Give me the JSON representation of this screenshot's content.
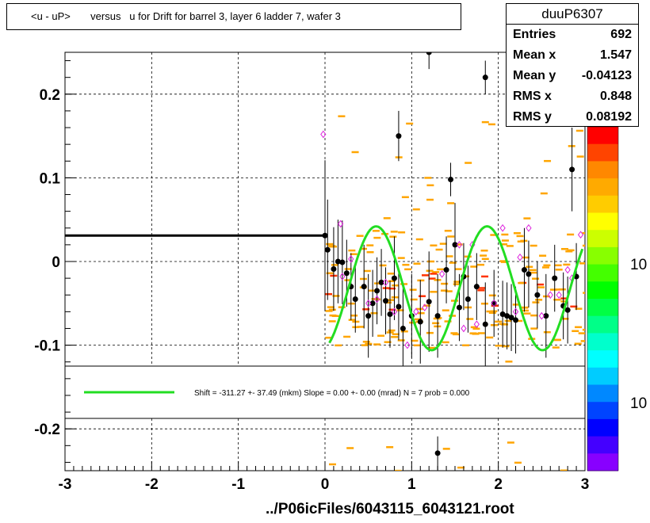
{
  "title": "<u - uP>       versus   u for Drift for barrel 3, layer 6 ladder 7, wafer 3",
  "stats": {
    "name": "duuP6307",
    "rows": [
      {
        "label": "Entries",
        "value": "692"
      },
      {
        "label": "Mean x",
        "value": "1.547"
      },
      {
        "label": "Mean y",
        "value": "-0.04123"
      },
      {
        "label": "RMS x",
        "value": "0.848"
      },
      {
        "label": "RMS y",
        "value": "0.08192"
      }
    ]
  },
  "legend_text": "Shift =  -311.27 +- 37.49 (mkm) Slope =     0.00 +- 0.00 (mrad)  N = 7 prob = 0.000",
  "footer": "../P06icFiles/6043115_6043121.root",
  "colors": {
    "fit_curve": "#22dd22",
    "profile_marker": "#000000",
    "hollow_marker": "#dd22dd",
    "histogram_bins": "#ffa500",
    "bins_dense": "#ff3300"
  },
  "palette_labels": [
    "10",
    "10"
  ],
  "chart_data": {
    "type": "scatter",
    "xlim": [
      -3,
      3
    ],
    "ylim": [
      -0.25,
      0.25
    ],
    "x_ticks": [
      "-3",
      "-2",
      "-1",
      "0",
      "1",
      "2",
      "3"
    ],
    "y_ticks": [
      "0.2",
      "0.1",
      "0",
      "-0.1",
      "-0.2"
    ],
    "y_tick_values": [
      0.2,
      0.1,
      0,
      -0.1,
      -0.2
    ],
    "grid": true,
    "palette_log": true,
    "reference_line": {
      "x": [
        -3,
        0
      ],
      "y": 0.031
    },
    "fit": {
      "amplitude": 0.074,
      "offset": -0.032,
      "period": 1.28,
      "x_start": 0.0,
      "x_end": 3.0
    },
    "profile_points": [
      {
        "x": 0.0,
        "y": 0.031,
        "e": 0.09
      },
      {
        "x": 0.03,
        "y": 0.014,
        "e": 0.06
      },
      {
        "x": 0.1,
        "y": -0.009,
        "e": 0.05
      },
      {
        "x": 0.15,
        "y": -0.0,
        "e": 0.05
      },
      {
        "x": 0.2,
        "y": -0.001,
        "e": 0.05
      },
      {
        "x": 0.25,
        "y": -0.014,
        "e": 0.04
      },
      {
        "x": 0.3,
        "y": -0.03,
        "e": 0.04
      },
      {
        "x": 0.35,
        "y": -0.045,
        "e": 0.04
      },
      {
        "x": 0.45,
        "y": -0.03,
        "e": 0.05
      },
      {
        "x": 0.5,
        "y": -0.065,
        "e": 0.05
      },
      {
        "x": 0.55,
        "y": -0.05,
        "e": 0.04
      },
      {
        "x": 0.6,
        "y": -0.035,
        "e": 0.04
      },
      {
        "x": 0.65,
        "y": -0.025,
        "e": 0.04
      },
      {
        "x": 0.7,
        "y": -0.047,
        "e": 0.04
      },
      {
        "x": 0.75,
        "y": -0.063,
        "e": 0.04
      },
      {
        "x": 0.8,
        "y": -0.02,
        "e": 0.05
      },
      {
        "x": 0.85,
        "y": -0.054,
        "e": 0.04
      },
      {
        "x": 0.9,
        "y": -0.08,
        "e": 0.05
      },
      {
        "x": 1.0,
        "y": -0.065,
        "e": 0.05
      },
      {
        "x": 1.1,
        "y": -0.072,
        "e": 0.05
      },
      {
        "x": 1.2,
        "y": -0.048,
        "e": 0.06
      },
      {
        "x": 1.3,
        "y": -0.065,
        "e": 0.05
      },
      {
        "x": 1.4,
        "y": -0.01,
        "e": 0.04
      },
      {
        "x": 1.5,
        "y": 0.02,
        "e": 0.05
      },
      {
        "x": 1.55,
        "y": -0.055,
        "e": 0.04
      },
      {
        "x": 1.6,
        "y": -0.018,
        "e": 0.04
      },
      {
        "x": 1.65,
        "y": -0.045,
        "e": 0.04
      },
      {
        "x": 1.75,
        "y": -0.03,
        "e": 0.04
      },
      {
        "x": 1.85,
        "y": -0.075,
        "e": 0.05
      },
      {
        "x": 1.95,
        "y": -0.05,
        "e": 0.04
      },
      {
        "x": 2.05,
        "y": -0.063,
        "e": 0.04
      },
      {
        "x": 2.1,
        "y": -0.065,
        "e": 0.04
      },
      {
        "x": 2.15,
        "y": -0.067,
        "e": 0.04
      },
      {
        "x": 2.2,
        "y": -0.07,
        "e": 0.04
      },
      {
        "x": 2.3,
        "y": -0.01,
        "e": 0.05
      },
      {
        "x": 2.35,
        "y": -0.015,
        "e": 0.04
      },
      {
        "x": 2.45,
        "y": -0.04,
        "e": 0.04
      },
      {
        "x": 2.55,
        "y": -0.065,
        "e": 0.05
      },
      {
        "x": 2.65,
        "y": -0.02,
        "e": 0.04
      },
      {
        "x": 2.75,
        "y": -0.053,
        "e": 0.04
      },
      {
        "x": 2.8,
        "y": -0.058,
        "e": 0.04
      },
      {
        "x": 2.85,
        "y": 0.11,
        "e": 0.05
      },
      {
        "x": 2.9,
        "y": -0.018,
        "e": 0.04
      },
      {
        "x": 1.2,
        "y": 0.25,
        "e": 0.02
      },
      {
        "x": 1.3,
        "y": -0.229,
        "e": 0.02
      },
      {
        "x": 1.85,
        "y": 0.22,
        "e": 0.02
      },
      {
        "x": 0.85,
        "y": 0.15,
        "e": 0.03
      },
      {
        "x": 1.45,
        "y": 0.098,
        "e": 0.02
      }
    ],
    "hollow_points": [
      {
        "x": -0.02,
        "y": 0.152
      },
      {
        "x": 0.18,
        "y": 0.045
      },
      {
        "x": 0.2,
        "y": -0.018
      },
      {
        "x": 0.3,
        "y": 0.003
      },
      {
        "x": 0.5,
        "y": -0.05
      },
      {
        "x": 0.6,
        "y": -0.045
      },
      {
        "x": 0.7,
        "y": -0.025
      },
      {
        "x": 0.8,
        "y": -0.06
      },
      {
        "x": 0.95,
        "y": -0.1
      },
      {
        "x": 1.05,
        "y": -0.06
      },
      {
        "x": 1.15,
        "y": -0.055
      },
      {
        "x": 1.35,
        "y": -0.015
      },
      {
        "x": 1.55,
        "y": 0.02
      },
      {
        "x": 1.6,
        "y": -0.08
      },
      {
        "x": 1.7,
        "y": 0.02
      },
      {
        "x": 1.75,
        "y": -0.075
      },
      {
        "x": 1.95,
        "y": -0.05
      },
      {
        "x": 2.05,
        "y": 0.04
      },
      {
        "x": 2.2,
        "y": -0.06
      },
      {
        "x": 2.25,
        "y": 0.005
      },
      {
        "x": 2.35,
        "y": 0.04
      },
      {
        "x": 2.5,
        "y": -0.065
      },
      {
        "x": 2.6,
        "y": -0.04
      },
      {
        "x": 2.7,
        "y": -0.04
      },
      {
        "x": 2.85,
        "y": -0.02
      },
      {
        "x": 2.95,
        "y": 0.032
      },
      {
        "x": 2.8,
        "y": -0.01
      }
    ]
  }
}
